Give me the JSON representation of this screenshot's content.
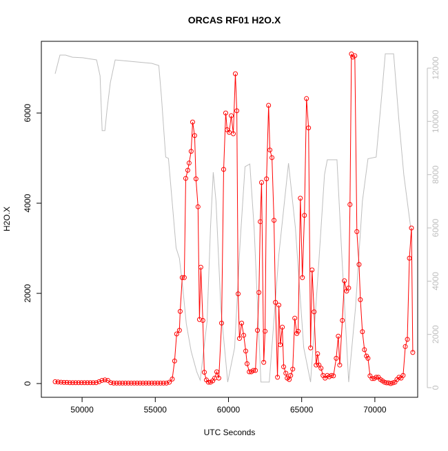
{
  "chart_data": {
    "type": "line",
    "title": "ORCAS RF01 H2O.X",
    "x_label": "UTC Seconds",
    "y_label": "H2O.X",
    "xlim": [
      47217,
      72925
    ],
    "xticks": [
      50000,
      55000,
      60000,
      65000,
      70000
    ],
    "ylim": [
      -305,
      7590
    ],
    "yticks": [
      0,
      2000,
      4000,
      6000
    ],
    "y2lim": [
      -362,
      13008
    ],
    "y2ticks": [
      0,
      2000,
      4000,
      6000,
      8000,
      10000,
      12000
    ],
    "series": [
      {
        "color": "#ff0000",
        "marker": "circle",
        "x": [
          48160,
          48360,
          48560,
          48760,
          48960,
          49160,
          49360,
          49560,
          49760,
          49960,
          50160,
          50360,
          50560,
          50760,
          50960,
          51160,
          51360,
          51560,
          51760,
          51960,
          52160,
          52360,
          52560,
          52760,
          52960,
          53160,
          53360,
          53560,
          53760,
          53960,
          54160,
          54360,
          54560,
          54760,
          54960,
          55160,
          55360,
          55560,
          55760,
          55960,
          56160,
          56320,
          56460,
          56650,
          56700,
          56840,
          56980,
          57080,
          57220,
          57310,
          57450,
          57550,
          57690,
          57780,
          57920,
          58020,
          58110,
          58250,
          58350,
          58490,
          58630,
          58770,
          58920,
          59060,
          59200,
          59340,
          59530,
          59670,
          59810,
          59910,
          60050,
          60190,
          60330,
          60470,
          60570,
          60660,
          60750,
          60900,
          61040,
          61180,
          61270,
          61420,
          61560,
          61700,
          61840,
          61980,
          62080,
          62170,
          62260,
          62410,
          62500,
          62600,
          62740,
          62830,
          62970,
          63110,
          63210,
          63350,
          63440,
          63540,
          63680,
          63770,
          63920,
          64010,
          64150,
          64250,
          64390,
          64530,
          64670,
          64760,
          64910,
          65050,
          65190,
          65330,
          65470,
          65610,
          65710,
          65850,
          65990,
          66090,
          66180,
          66320,
          66460,
          66600,
          66750,
          66890,
          67030,
          67170,
          67360,
          67500,
          67600,
          67780,
          67920,
          68070,
          68210,
          68300,
          68400,
          68490,
          68630,
          68770,
          68920,
          69010,
          69150,
          69290,
          69430,
          69530,
          69670,
          69810,
          69950,
          70090,
          70240,
          70380,
          70520,
          70660,
          70800,
          70940,
          71080,
          71230,
          71370,
          71510,
          71650,
          71790,
          71930,
          72080,
          72220,
          72360,
          72500,
          72590
        ],
        "values": [
          40,
          35,
          30,
          25,
          25,
          20,
          20,
          20,
          20,
          20,
          20,
          20,
          20,
          20,
          20,
          40,
          70,
          80,
          70,
          20,
          10,
          10,
          10,
          10,
          10,
          10,
          10,
          10,
          10,
          10,
          10,
          10,
          10,
          10,
          10,
          10,
          10,
          10,
          10,
          30,
          100,
          500,
          1100,
          1180,
          1600,
          2350,
          2350,
          4550,
          4730,
          4890,
          5150,
          5800,
          5500,
          4540,
          3920,
          1420,
          2580,
          1400,
          250,
          80,
          30,
          30,
          60,
          120,
          260,
          120,
          1340,
          4750,
          6000,
          5630,
          5570,
          5940,
          5540,
          6870,
          6050,
          1990,
          1000,
          1340,
          1070,
          720,
          440,
          260,
          260,
          290,
          290,
          1180,
          2020,
          3590,
          4460,
          470,
          1160,
          4540,
          6170,
          5180,
          5010,
          3620,
          1800,
          140,
          1740,
          860,
          1250,
          370,
          230,
          120,
          90,
          180,
          320,
          1450,
          1110,
          1160,
          4110,
          2350,
          3730,
          6320,
          5670,
          790,
          2520,
          1590,
          410,
          660,
          410,
          340,
          180,
          120,
          180,
          150,
          180,
          170,
          560,
          1050,
          410,
          1400,
          2280,
          2050,
          2120,
          3970,
          7310,
          7240,
          7270,
          3370,
          2640,
          1860,
          1150,
          750,
          610,
          560,
          170,
          110,
          110,
          140,
          140,
          90,
          60,
          30,
          15,
          15,
          0,
          15,
          30,
          90,
          140,
          120,
          180,
          820,
          980,
          2780,
          3450,
          690
        ]
      },
      {
        "color": "#bebebe",
        "axis": "y2",
        "x": [
          48160,
          48490,
          48870,
          49340,
          50050,
          50990,
          51230,
          51370,
          51560,
          51700,
          51930,
          52260,
          52880,
          53820,
          54760,
          55240,
          55420,
          55710,
          55900,
          56180,
          56420,
          56650,
          56890,
          57120,
          57450,
          57830,
          58070,
          58540,
          58770,
          58960,
          59150,
          59480,
          59950,
          60420,
          60800,
          61130,
          61460,
          61750,
          62220,
          62790,
          63440,
          64100,
          64570,
          65140,
          65610,
          66090,
          66560,
          66750,
          67410,
          67740,
          68210,
          68680,
          69150,
          69530,
          70090,
          70470,
          70710,
          71280,
          71650,
          71980,
          72450
        ],
        "values": [
          11790,
          12490,
          12490,
          12410,
          12390,
          12310,
          11710,
          9650,
          9650,
          10420,
          11460,
          12310,
          12280,
          12230,
          12180,
          12100,
          10940,
          8660,
          8610,
          6800,
          5250,
          4860,
          3700,
          2400,
          1370,
          600,
          280,
          2500,
          6000,
          8090,
          7000,
          3000,
          210,
          1500,
          5500,
          8300,
          8400,
          6000,
          210,
          210,
          5000,
          8430,
          6000,
          1500,
          210,
          4000,
          8000,
          8560,
          8560,
          5000,
          210,
          3000,
          7000,
          8600,
          8660,
          11000,
          12540,
          12540,
          10000,
          8000,
          6000
        ]
      }
    ]
  }
}
